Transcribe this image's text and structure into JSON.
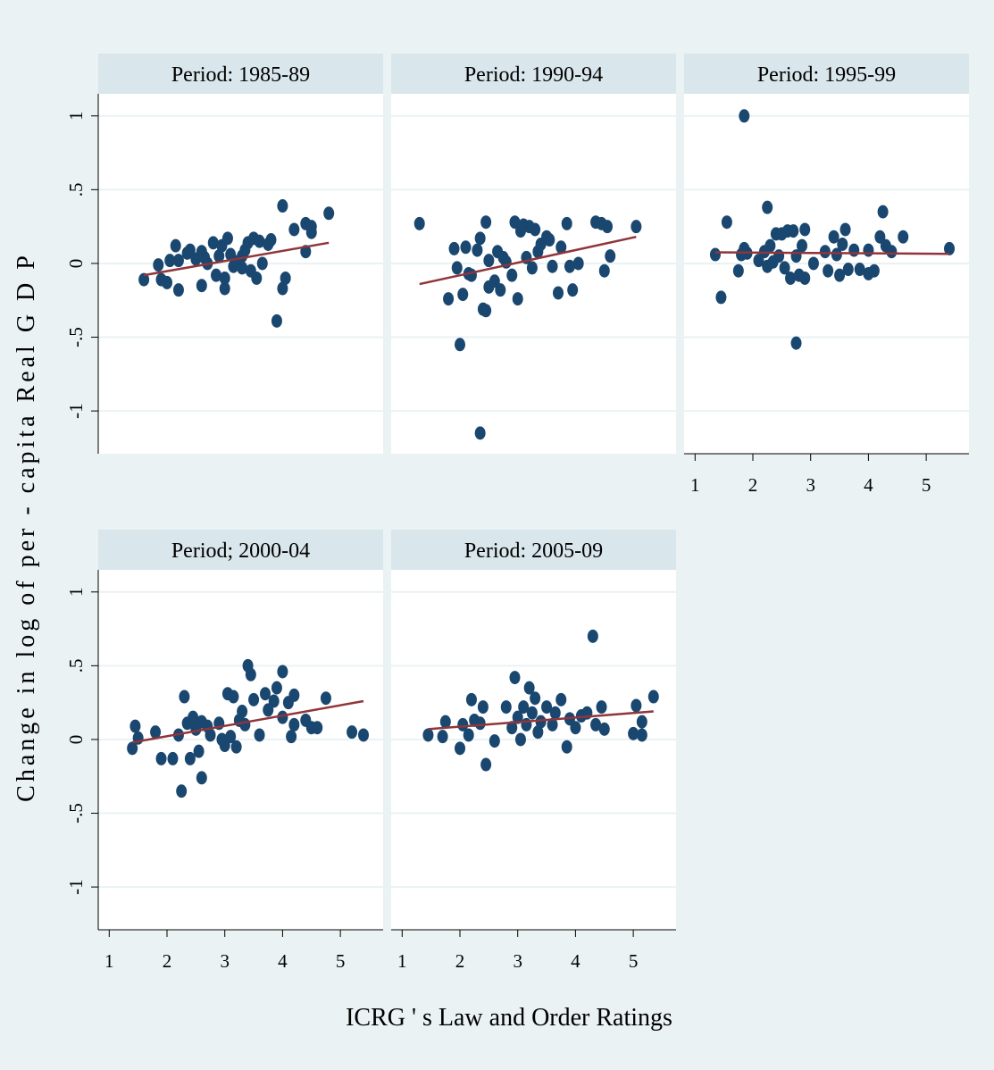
{
  "y_axis_title": "Change in log of per - capita Real G D P",
  "x_axis_title": "ICRG ' s Law and Order Ratings",
  "chart_data": [
    {
      "type": "scatter",
      "title": "Period: 1985-89",
      "color": "#1a476f",
      "x": [
        1.6,
        1.85,
        1.9,
        2.0,
        2.05,
        2.15,
        2.2,
        2.2,
        2.35,
        2.4,
        2.6,
        2.6,
        2.65,
        2.7,
        2.8,
        2.85,
        2.9,
        2.95,
        3.0,
        3.0,
        3.05,
        3.1,
        3.15,
        3.2,
        3.3,
        3.35,
        3.4,
        3.45,
        3.5,
        3.55,
        3.6,
        3.65,
        3.75,
        3.8,
        3.9,
        4.0,
        4.0,
        4.05,
        4.2,
        4.4,
        4.4,
        4.5,
        4.5,
        4.8,
        3.3,
        2.5
      ],
      "y": [
        -0.11,
        -0.01,
        -0.11,
        -0.13,
        0.02,
        0.12,
        -0.18,
        0.02,
        0.07,
        0.09,
        0.08,
        -0.15,
        0.04,
        0.0,
        0.14,
        -0.08,
        0.05,
        0.12,
        -0.1,
        -0.17,
        0.17,
        0.06,
        -0.02,
        0.01,
        -0.03,
        0.09,
        0.14,
        -0.05,
        0.17,
        -0.1,
        0.15,
        0.0,
        0.13,
        0.16,
        -0.39,
        0.39,
        -0.17,
        -0.1,
        0.23,
        0.27,
        0.08,
        0.25,
        0.21,
        0.34,
        0.05,
        0.03
      ],
      "fit": {
        "x": [
          1.6,
          4.8
        ],
        "y": [
          -0.08,
          0.14
        ],
        "color": "#90353b"
      },
      "xlim": [
        0.81,
        5.74
      ],
      "ylim": [
        -1.29,
        1.15
      ],
      "xticks": [
        1,
        2,
        3,
        4,
        5
      ],
      "yticks": [
        -1,
        {
          "value": -0.5,
          "label": "-.5"
        },
        0,
        {
          "value": 0.5,
          "label": ".5"
        },
        1
      ],
      "y_axis": true,
      "x_axis": false,
      "grid": true
    },
    {
      "type": "scatter",
      "title": "Period: 1990-94",
      "color": "#1a476f",
      "x": [
        1.3,
        1.8,
        1.9,
        1.95,
        2.0,
        2.05,
        2.1,
        2.15,
        2.2,
        2.3,
        2.35,
        2.35,
        2.4,
        2.45,
        2.45,
        2.5,
        2.5,
        2.6,
        2.65,
        2.7,
        2.75,
        2.8,
        2.9,
        2.95,
        3.0,
        3.05,
        3.1,
        3.15,
        3.2,
        3.25,
        3.3,
        3.35,
        3.4,
        3.5,
        3.55,
        3.6,
        3.7,
        3.75,
        3.85,
        3.9,
        3.95,
        4.05,
        4.35,
        4.45,
        4.5,
        4.55,
        4.6,
        5.05
      ],
      "y": [
        0.27,
        -0.24,
        0.1,
        -0.03,
        -0.55,
        -0.21,
        0.11,
        -0.07,
        -0.08,
        0.09,
        0.17,
        -1.15,
        -0.31,
        0.28,
        -0.32,
        0.02,
        -0.16,
        -0.12,
        0.08,
        -0.18,
        0.04,
        0.01,
        -0.08,
        0.28,
        -0.24,
        0.22,
        0.26,
        0.04,
        0.25,
        -0.03,
        0.23,
        0.08,
        0.13,
        0.18,
        0.16,
        -0.02,
        -0.2,
        0.11,
        0.27,
        -0.02,
        -0.18,
        0.0,
        0.28,
        0.27,
        -0.05,
        0.25,
        0.05,
        0.25
      ],
      "fit": {
        "x": [
          1.3,
          5.05
        ],
        "y": [
          -0.14,
          0.18
        ],
        "color": "#90353b"
      },
      "xlim": [
        0.81,
        5.74
      ],
      "ylim": [
        -1.29,
        1.15
      ],
      "xticks": [
        1,
        2,
        3,
        4,
        5
      ],
      "yticks": [
        -1,
        {
          "value": -0.5,
          "label": "-.5"
        },
        0,
        {
          "value": 0.5,
          "label": ".5"
        },
        1
      ],
      "y_axis": false,
      "x_axis": false,
      "grid": true
    },
    {
      "type": "scatter",
      "title": "Period: 1995-99",
      "color": "#1a476f",
      "x": [
        1.35,
        1.45,
        1.55,
        1.75,
        1.8,
        1.85,
        1.85,
        1.9,
        2.1,
        2.2,
        2.25,
        2.25,
        2.3,
        2.35,
        2.4,
        2.45,
        2.5,
        2.55,
        2.6,
        2.65,
        2.7,
        2.75,
        2.75,
        2.8,
        2.85,
        2.9,
        2.9,
        3.05,
        3.25,
        3.3,
        3.4,
        3.45,
        3.5,
        3.55,
        3.6,
        3.65,
        3.75,
        3.85,
        4.0,
        4.0,
        4.1,
        4.2,
        4.25,
        4.3,
        4.4,
        4.6,
        5.4
      ],
      "y": [
        0.06,
        -0.23,
        0.28,
        -0.05,
        0.06,
        0.1,
        1.0,
        0.07,
        0.02,
        0.08,
        -0.02,
        0.38,
        0.12,
        0.01,
        0.2,
        0.05,
        0.2,
        -0.03,
        0.22,
        -0.1,
        0.22,
        -0.54,
        0.05,
        -0.08,
        0.12,
        -0.1,
        0.23,
        0.0,
        0.08,
        -0.05,
        0.18,
        0.06,
        -0.08,
        0.13,
        0.23,
        -0.04,
        0.09,
        -0.04,
        0.09,
        -0.07,
        -0.05,
        0.18,
        0.35,
        0.12,
        0.08,
        0.18,
        0.1
      ],
      "fit": {
        "x": [
          1.35,
          5.4
        ],
        "y": [
          0.075,
          0.065
        ],
        "color": "#90353b"
      },
      "xlim": [
        0.81,
        5.74
      ],
      "ylim": [
        -1.29,
        1.15
      ],
      "xticks": [
        1,
        2,
        3,
        4,
        5
      ],
      "yticks": [
        -1,
        {
          "value": -0.5,
          "label": "-.5"
        },
        0,
        {
          "value": 0.5,
          "label": ".5"
        },
        1
      ],
      "y_axis": false,
      "x_axis": true,
      "grid": true
    },
    {
      "type": "scatter",
      "title": "Period; 2000-04",
      "color": "#1a476f",
      "x": [
        1.4,
        1.45,
        1.5,
        1.8,
        1.9,
        2.1,
        2.2,
        2.25,
        2.3,
        2.35,
        2.4,
        2.45,
        2.5,
        2.55,
        2.6,
        2.6,
        2.7,
        2.75,
        2.9,
        2.95,
        3.0,
        3.05,
        3.1,
        3.15,
        3.2,
        3.25,
        3.3,
        3.35,
        3.4,
        3.45,
        3.5,
        3.6,
        3.7,
        3.75,
        3.85,
        3.9,
        4.0,
        4.0,
        4.1,
        4.15,
        4.2,
        4.2,
        4.4,
        4.5,
        4.6,
        4.75,
        5.2,
        5.4
      ],
      "y": [
        -0.06,
        0.09,
        0.01,
        0.05,
        -0.13,
        -0.13,
        0.03,
        -0.35,
        0.29,
        0.11,
        -0.13,
        0.15,
        0.07,
        -0.08,
        0.12,
        -0.26,
        0.09,
        0.03,
        0.11,
        0.0,
        -0.04,
        0.31,
        0.02,
        0.29,
        -0.05,
        0.13,
        0.19,
        0.1,
        0.5,
        0.44,
        0.27,
        0.03,
        0.31,
        0.2,
        0.26,
        0.35,
        0.46,
        0.15,
        0.25,
        0.02,
        0.3,
        0.1,
        0.13,
        0.08,
        0.08,
        0.28,
        0.05,
        0.03
      ],
      "fit": {
        "x": [
          1.4,
          5.4
        ],
        "y": [
          -0.02,
          0.26
        ],
        "color": "#90353b"
      },
      "xlim": [
        0.81,
        5.74
      ],
      "ylim": [
        -1.29,
        1.15
      ],
      "xticks": [
        1,
        2,
        3,
        4,
        5
      ],
      "yticks": [
        -1,
        {
          "value": -0.5,
          "label": "-.5"
        },
        0,
        {
          "value": 0.5,
          "label": ".5"
        },
        1
      ],
      "y_axis": true,
      "x_axis": true,
      "grid": true
    },
    {
      "type": "scatter",
      "title": "Period: 2005-09",
      "color": "#1a476f",
      "x": [
        1.45,
        1.7,
        1.75,
        2.0,
        2.05,
        2.15,
        2.2,
        2.25,
        2.35,
        2.4,
        2.45,
        2.6,
        2.8,
        2.9,
        2.95,
        3.0,
        3.05,
        3.1,
        3.15,
        3.2,
        3.25,
        3.3,
        3.35,
        3.4,
        3.5,
        3.6,
        3.65,
        3.75,
        3.85,
        3.9,
        4.0,
        4.1,
        4.2,
        4.3,
        4.35,
        4.45,
        4.5,
        5.0,
        5.05,
        5.15,
        5.15,
        5.35
      ],
      "y": [
        0.03,
        0.02,
        0.12,
        -0.06,
        0.1,
        0.03,
        0.27,
        0.13,
        0.11,
        0.22,
        -0.17,
        -0.01,
        0.22,
        0.08,
        0.42,
        0.15,
        0.0,
        0.22,
        0.1,
        0.35,
        0.18,
        0.28,
        0.05,
        0.12,
        0.22,
        0.1,
        0.18,
        0.27,
        -0.05,
        0.14,
        0.08,
        0.16,
        0.18,
        0.7,
        0.1,
        0.22,
        0.07,
        0.04,
        0.23,
        0.12,
        0.03,
        0.29
      ],
      "fit": {
        "x": [
          1.45,
          5.35
        ],
        "y": [
          0.07,
          0.19
        ],
        "color": "#90353b"
      },
      "xlim": [
        0.81,
        5.74
      ],
      "ylim": [
        -1.29,
        1.15
      ],
      "xticks": [
        1,
        2,
        3,
        4,
        5
      ],
      "yticks": [
        -1,
        {
          "value": -0.5,
          "label": "-.5"
        },
        0,
        {
          "value": 0.5,
          "label": ".5"
        },
        1
      ],
      "y_axis": false,
      "x_axis": true,
      "grid": true
    }
  ]
}
